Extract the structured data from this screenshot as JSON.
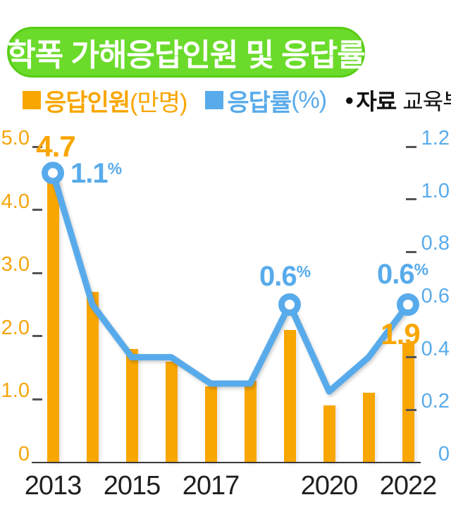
{
  "title": {
    "text": "학폭 가해응답인원 및 응답률"
  },
  "legend": {
    "items": [
      {
        "name": "응답인원",
        "unit": "(만명)",
        "color": "#F8A602"
      },
      {
        "name": "응답률",
        "unit": "(%)",
        "color": "#58ABEB"
      }
    ],
    "source": {
      "bullet": "●",
      "label": "자료",
      "value": "교육부"
    }
  },
  "colors": {
    "bar": "#F8A602",
    "line": "#58ABEB",
    "title_bg": "#6BDB2B",
    "title_border": "#58CC15",
    "title_text": "#FFFFFF",
    "axis_left_labels": "#F5A50A",
    "axis_right_labels": "#58ABEB",
    "x_labels": "#1F1F1F",
    "tick": "#555555",
    "axis_line": "#3A3A3A"
  },
  "chart_data": {
    "type": "bar+line",
    "title": "학폭 가해응답인원 및 응답률",
    "categories": [
      "2013",
      "2014",
      "2015",
      "2016",
      "2017",
      "2018",
      "2019",
      "2020",
      "2021",
      "2022"
    ],
    "x_tick_labels": [
      {
        "index": 0,
        "label": "2013"
      },
      {
        "index": 2,
        "label": "2015"
      },
      {
        "index": 4,
        "label": "2017"
      },
      {
        "index": 7,
        "label": "2020"
      },
      {
        "index": 9,
        "label": "2022"
      }
    ],
    "series": [
      {
        "name": "응답인원(만명)",
        "type": "bar",
        "axis": "left",
        "values": [
          4.7,
          2.7,
          1.8,
          1.6,
          1.2,
          1.3,
          2.1,
          0.9,
          1.1,
          1.9
        ],
        "point_labels": [
          {
            "index": 0,
            "text": "4.7"
          },
          {
            "index": 9,
            "text": "1.9"
          }
        ]
      },
      {
        "name": "응답률(%)",
        "type": "line",
        "axis": "right",
        "values": [
          1.1,
          0.6,
          0.4,
          0.4,
          0.3,
          0.3,
          0.6,
          0.27,
          0.4,
          0.6
        ],
        "marker_indices": [
          0,
          6,
          9
        ],
        "point_labels": [
          {
            "index": 0,
            "text": "1.1",
            "suffix": "%"
          },
          {
            "index": 6,
            "text": "0.6",
            "suffix": "%"
          },
          {
            "index": 9,
            "text": "0.6",
            "suffix": "%"
          }
        ]
      }
    ],
    "left_axis": {
      "label": "응답인원(만명)",
      "min": 0,
      "max": 5.0,
      "ticks": [
        5.0,
        4.0,
        3.0,
        2.0,
        1.0,
        0
      ],
      "tick_labels": [
        "5.0",
        "4.0",
        "3.0",
        "2.0",
        "1.0",
        "0"
      ]
    },
    "right_axis": {
      "label": "응답률(%)",
      "min": 0,
      "max": 1.2,
      "ticks": [
        1.2,
        1.0,
        0.8,
        0.6,
        0.4,
        0.2,
        0
      ],
      "tick_labels": [
        "1.2",
        "1.0",
        "0.8",
        "0.6",
        "0.4",
        "0.2",
        "0"
      ]
    },
    "grid": false,
    "legend_position": "top"
  }
}
